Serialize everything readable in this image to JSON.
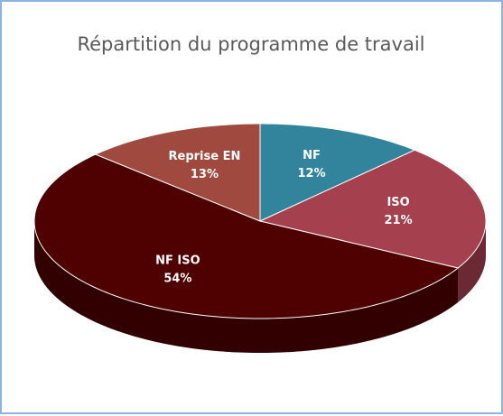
{
  "chart_data": {
    "type": "pie",
    "title": "Répartition du programme de travail",
    "categories": [
      "NF",
      "ISO",
      "NF ISO",
      "Reprise EN"
    ],
    "values": [
      12,
      21,
      54,
      13
    ],
    "value_labels": [
      "12%",
      "21%",
      "54%",
      "13%"
    ],
    "colors": [
      "#31849b",
      "#a5404f",
      "#4f0000",
      "#a04a3f"
    ]
  }
}
